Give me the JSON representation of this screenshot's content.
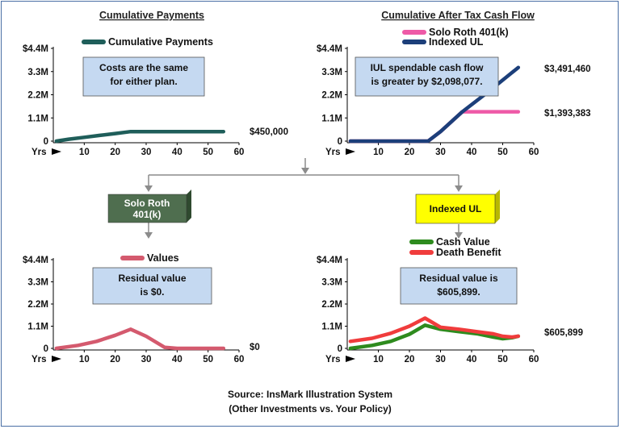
{
  "chart_data": [
    {
      "type": "line",
      "title": "Cumulative Payments",
      "ylabels": [
        "$4.4M",
        "3.3M",
        "2.2M",
        "1.1M",
        "0"
      ],
      "xlabels": [
        "Yrs",
        "10",
        "20",
        "30",
        "40",
        "50",
        "60"
      ],
      "ylim": [
        0,
        4400000
      ],
      "xlim": [
        0,
        60
      ],
      "series": [
        {
          "name": "Cumulative Payments",
          "color": "#1f5e5a",
          "points": [
            [
              1,
              0
            ],
            [
              5,
              90000
            ],
            [
              10,
              180000
            ],
            [
              15,
              270000
            ],
            [
              20,
              360000
            ],
            [
              25,
              450000
            ],
            [
              30,
              450000
            ],
            [
              40,
              450000
            ],
            [
              50,
              450000
            ],
            [
              55,
              450000
            ]
          ]
        }
      ],
      "end_labels": [
        "$450,000"
      ],
      "callout": [
        "Costs are the same",
        "for either plan."
      ]
    },
    {
      "type": "line",
      "title": "Cumulative After Tax Cash Flow",
      "ylabels": [
        "$4.4M",
        "3.3M",
        "2.2M",
        "1.1M",
        "0"
      ],
      "xlabels": [
        "Yrs",
        "10",
        "20",
        "30",
        "40",
        "50",
        "60"
      ],
      "ylim": [
        0,
        4400000
      ],
      "xlim": [
        0,
        60
      ],
      "series": [
        {
          "name": "Solo Roth 401(k)",
          "color": "#ee5aa7",
          "points": [
            [
              1,
              0
            ],
            [
              26,
              0
            ],
            [
              30,
              450000
            ],
            [
              37,
              1393383
            ],
            [
              45,
              1393383
            ],
            [
              55,
              1393383
            ]
          ]
        },
        {
          "name": "Indexed UL",
          "color": "#1c3f7a",
          "points": [
            [
              1,
              0
            ],
            [
              26,
              0
            ],
            [
              30,
              450000
            ],
            [
              37,
              1393383
            ],
            [
              45,
              2300000
            ],
            [
              55,
              3491460
            ]
          ]
        }
      ],
      "end_labels": [
        "$3,491,460",
        "$1,393,383"
      ],
      "callout": [
        "IUL spendable cash flow",
        "is greater by $2,098,077."
      ]
    },
    {
      "type": "line",
      "title": "",
      "ylabels": [
        "$4.4M",
        "3.3M",
        "2.2M",
        "1.1M",
        "0"
      ],
      "xlabels": [
        "Yrs",
        "10",
        "20",
        "30",
        "40",
        "50",
        "60"
      ],
      "ylim": [
        0,
        4400000
      ],
      "xlim": [
        0,
        60
      ],
      "series": [
        {
          "name": "Values",
          "color": "#d45a6e",
          "points": [
            [
              1,
              0
            ],
            [
              8,
              150000
            ],
            [
              14,
              350000
            ],
            [
              20,
              650000
            ],
            [
              25,
              950000
            ],
            [
              30,
              600000
            ],
            [
              36,
              50000
            ],
            [
              40,
              0
            ],
            [
              55,
              0
            ]
          ]
        }
      ],
      "end_labels": [
        "$0"
      ],
      "callout": [
        "Residual value",
        "is $0."
      ]
    },
    {
      "type": "line",
      "title": "",
      "ylabels": [
        "$4.4M",
        "3.3M",
        "2.2M",
        "1.1M",
        "0"
      ],
      "xlabels": [
        "Yrs",
        "10",
        "20",
        "30",
        "40",
        "50",
        "60"
      ],
      "ylim": [
        0,
        4400000
      ],
      "xlim": [
        0,
        60
      ],
      "series": [
        {
          "name": "Cash Value",
          "color": "#2e8b1e",
          "points": [
            [
              1,
              0
            ],
            [
              8,
              150000
            ],
            [
              14,
              350000
            ],
            [
              20,
              700000
            ],
            [
              25,
              1150000
            ],
            [
              30,
              950000
            ],
            [
              36,
              830000
            ],
            [
              42,
              720000
            ],
            [
              47,
              560000
            ],
            [
              50,
              480000
            ],
            [
              53,
              530000
            ],
            [
              55,
              605899
            ]
          ]
        },
        {
          "name": "Death Benefit",
          "color": "#f03c3c",
          "points": [
            [
              1,
              350000
            ],
            [
              8,
              500000
            ],
            [
              14,
              750000
            ],
            [
              20,
              1100000
            ],
            [
              25,
              1500000
            ],
            [
              30,
              1050000
            ],
            [
              36,
              950000
            ],
            [
              42,
              820000
            ],
            [
              47,
              720000
            ],
            [
              50,
              600000
            ],
            [
              53,
              560000
            ],
            [
              55,
              605899
            ]
          ]
        }
      ],
      "end_labels": [
        "$605,899"
      ],
      "callout": [
        "Residual value is",
        "$605,899."
      ]
    }
  ],
  "plans": {
    "roth": [
      "Solo Roth",
      "401(k)"
    ],
    "iul": "Indexed UL"
  },
  "source": [
    "Source: InsMark Illustration System",
    "(Other Investments vs. Your Policy)"
  ],
  "colors": {
    "callout_fill": "#c5d9f1",
    "roth_box": "#4f6e4f",
    "iul_box": "#ffff00",
    "connector": "#8c8c8c",
    "axis": "#000000"
  }
}
